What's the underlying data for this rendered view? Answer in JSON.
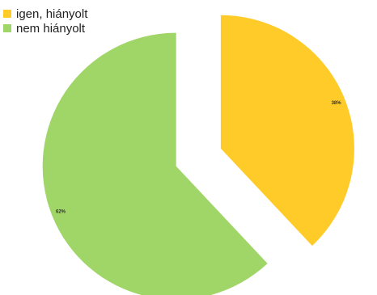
{
  "chart_data": {
    "type": "pie",
    "categories": [
      "igen, hiányolt",
      "nem hiányolt"
    ],
    "values": [
      38,
      62
    ],
    "labels": [
      "38%",
      "62%"
    ],
    "colors": [
      "#ffcb29",
      "#a0d567"
    ],
    "legend": "top-left",
    "exploded": true
  }
}
